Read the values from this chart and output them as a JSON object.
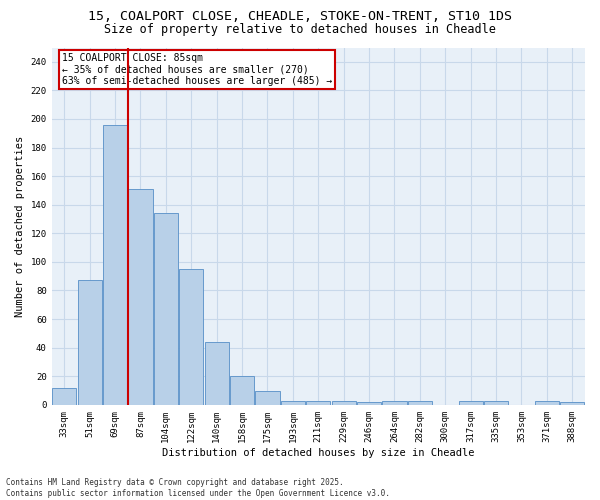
{
  "title1": "15, COALPORT CLOSE, CHEADLE, STOKE-ON-TRENT, ST10 1DS",
  "title2": "Size of property relative to detached houses in Cheadle",
  "xlabel": "Distribution of detached houses by size in Cheadle",
  "ylabel": "Number of detached properties",
  "categories": [
    "33sqm",
    "51sqm",
    "69sqm",
    "87sqm",
    "104sqm",
    "122sqm",
    "140sqm",
    "158sqm",
    "175sqm",
    "193sqm",
    "211sqm",
    "229sqm",
    "246sqm",
    "264sqm",
    "282sqm",
    "300sqm",
    "317sqm",
    "335sqm",
    "353sqm",
    "371sqm",
    "388sqm"
  ],
  "values": [
    12,
    87,
    196,
    151,
    134,
    95,
    44,
    20,
    10,
    3,
    3,
    3,
    2,
    3,
    3,
    0,
    3,
    3,
    0,
    3,
    2
  ],
  "bar_color": "#b8d0e8",
  "bar_edge_color": "#6699cc",
  "vline_color": "#cc0000",
  "vline_x": 2.5,
  "annotation_text": "15 COALPORT CLOSE: 85sqm\n← 35% of detached houses are smaller (270)\n63% of semi-detached houses are larger (485) →",
  "annotation_box_color": "#cc0000",
  "ylim": [
    0,
    250
  ],
  "yticks": [
    0,
    20,
    40,
    60,
    80,
    100,
    120,
    140,
    160,
    180,
    200,
    220,
    240
  ],
  "grid_color": "#c8d8ea",
  "background_color": "#e8f0f8",
  "footer": "Contains HM Land Registry data © Crown copyright and database right 2025.\nContains public sector information licensed under the Open Government Licence v3.0.",
  "title_fontsize": 9.5,
  "subtitle_fontsize": 8.5,
  "axis_label_fontsize": 7.5,
  "tick_fontsize": 6.5,
  "annotation_fontsize": 7,
  "footer_fontsize": 5.5
}
